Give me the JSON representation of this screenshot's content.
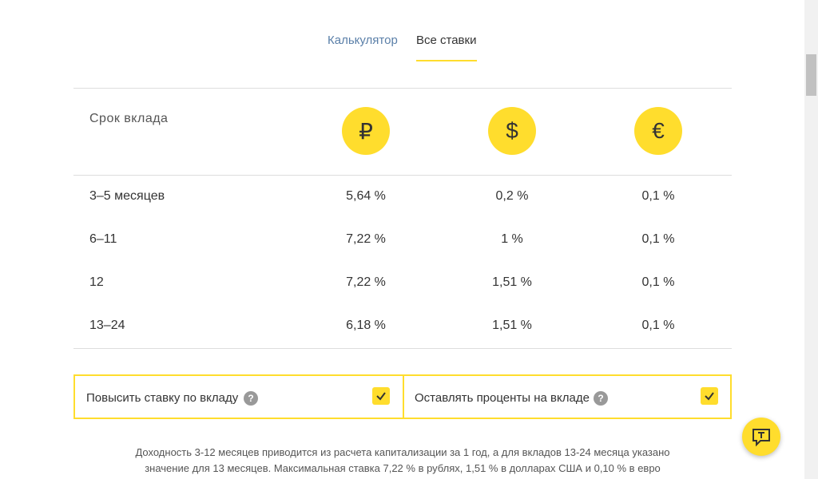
{
  "tabs": [
    "Калькулятор",
    "Все ставки"
  ],
  "table": {
    "header": {
      "label": "Срок вклада",
      "currencies": [
        "₽",
        "$",
        "€"
      ]
    },
    "rows": [
      [
        "3–5 месяцев",
        "5,64 %",
        "0,2 %",
        "0,1 %"
      ],
      [
        "6–11",
        "7,22 %",
        "1 %",
        "0,1 %"
      ],
      [
        "12",
        "7,22 %",
        "1,51 %",
        "0,1 %"
      ],
      [
        "13–24",
        "6,18 %",
        "1,51 %",
        "0,1 %"
      ]
    ]
  },
  "options": [
    "Повысить ставку по вкладу",
    "Оставлять проценты на вкладе"
  ],
  "footnote": [
    "Доходность 3-12 месяцев приводится из расчета капитализации за 1  год, а для вкладов 13-24 месяца указано",
    "значение для 13 месяцев. Максимальная ставка 7,22 %  в рублях, 1,51 % в долларах США и 0,10 %  в евро"
  ]
}
